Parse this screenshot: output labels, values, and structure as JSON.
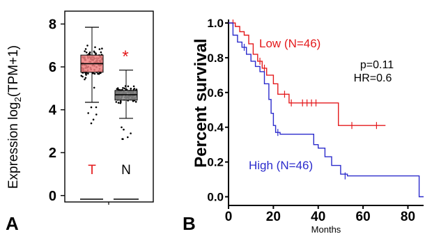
{
  "chart_data": [
    {
      "type": "box",
      "panel_label": "A",
      "ylabel": "Expression log",
      "ylabel_sub": "2",
      "ylabel_tail": "(TPM+1)",
      "yticks": [
        0,
        2,
        4,
        6,
        8
      ],
      "ylim": [
        -0.3,
        8.6
      ],
      "significance_marker": "*",
      "groups": [
        {
          "label": "T",
          "color": "#e41a1c",
          "box_fill": "#f08080",
          "q1": 5.75,
          "median": 6.15,
          "q3": 6.55,
          "whisker_low": 4.35,
          "whisker_high": 7.85,
          "point_count_shown": 130
        },
        {
          "label": "N",
          "color": "#000000",
          "box_fill": "#8c8c8c",
          "q1": 4.45,
          "median": 4.7,
          "q3": 4.9,
          "whisker_low": 3.6,
          "whisker_high": 5.85,
          "point_count_shown": 160
        }
      ]
    },
    {
      "type": "line",
      "subtype": "kaplan-meier",
      "panel_label": "B",
      "ylabel": "Percent survival",
      "xlabel": "Months",
      "xticks": [
        0,
        20,
        40,
        60,
        80
      ],
      "yticks": [
        0.0,
        0.2,
        0.4,
        0.6,
        0.8,
        1.0
      ],
      "ytick_labels": [
        "0.0",
        "0.2",
        "0.4",
        "0.6",
        "0.8",
        "1.0"
      ],
      "xlim": [
        0,
        87
      ],
      "ylim": [
        -0.05,
        1.02
      ],
      "annotations": [
        "p=0.11",
        "HR=0.6"
      ],
      "series": [
        {
          "name": "Low (N=46)",
          "color": "#e41a1c",
          "steps": [
            [
              0,
              1.0
            ],
            [
              3,
              0.98
            ],
            [
              5,
              0.95
            ],
            [
              7,
              0.93
            ],
            [
              9,
              0.88
            ],
            [
              11,
              0.82
            ],
            [
              13,
              0.78
            ],
            [
              15,
              0.74
            ],
            [
              17,
              0.7
            ],
            [
              20,
              0.65
            ],
            [
              22,
              0.59
            ],
            [
              27,
              0.54
            ],
            [
              49,
              0.41
            ],
            [
              70,
              0.41
            ]
          ],
          "censored": [
            [
              2,
              1.0
            ],
            [
              14,
              0.78
            ],
            [
              16,
              0.74
            ],
            [
              25,
              0.59
            ],
            [
              28,
              0.54
            ],
            [
              33,
              0.54
            ],
            [
              35,
              0.54
            ],
            [
              37,
              0.54
            ],
            [
              39,
              0.54
            ],
            [
              55,
              0.41
            ],
            [
              66,
              0.41
            ]
          ]
        },
        {
          "name": "High (N=46)",
          "color": "#2b2bcc",
          "steps": [
            [
              0,
              1.0
            ],
            [
              2,
              0.93
            ],
            [
              4,
              0.89
            ],
            [
              6,
              0.86
            ],
            [
              8,
              0.82
            ],
            [
              10,
              0.78
            ],
            [
              12,
              0.75
            ],
            [
              14,
              0.72
            ],
            [
              16,
              0.65
            ],
            [
              18,
              0.56
            ],
            [
              19,
              0.48
            ],
            [
              20,
              0.41
            ],
            [
              21,
              0.37
            ],
            [
              23,
              0.36
            ],
            [
              38,
              0.3
            ],
            [
              40,
              0.28
            ],
            [
              43,
              0.23
            ],
            [
              46,
              0.18
            ],
            [
              50,
              0.13
            ],
            [
              53,
              0.12
            ],
            [
              85,
              0.0
            ],
            [
              87,
              0.0
            ]
          ],
          "censored": [
            [
              7,
              0.86
            ],
            [
              22,
              0.37
            ],
            [
              52,
              0.12
            ]
          ]
        }
      ]
    }
  ]
}
